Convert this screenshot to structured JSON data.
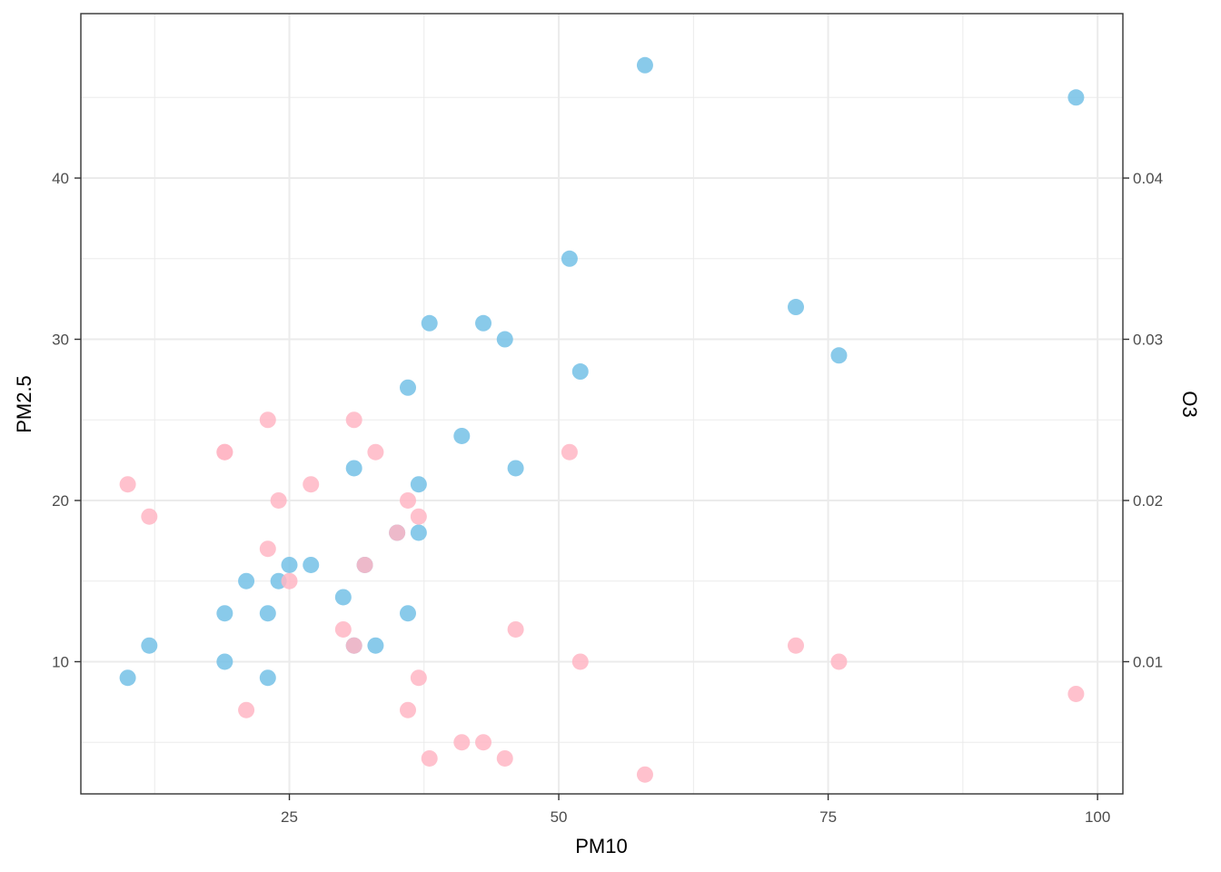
{
  "chart_data": {
    "type": "scatter",
    "xlabel": "PM10",
    "ylabel": "PM2.5",
    "y2label": "O3",
    "xlim": [
      5.65,
      102.35
    ],
    "ylim": [
      1.8,
      50.2
    ],
    "y2lim": [
      0.0018,
      0.0502
    ],
    "x_major_ticks": [
      25,
      50,
      75,
      100
    ],
    "x_minor_ticks": [
      12.5,
      37.5,
      62.5,
      87.5
    ],
    "y_major_ticks": [
      10,
      20,
      30,
      40
    ],
    "y_minor_ticks": [
      5,
      15,
      25,
      35,
      45
    ],
    "y2_major_ticks": [
      0.01,
      0.02,
      0.03,
      0.04
    ],
    "y2_tick_labels": [
      "0.01",
      "0.02",
      "0.03",
      "0.04"
    ],
    "grid": true,
    "series": [
      {
        "axis": "y",
        "color": "#74c1e6",
        "points": [
          [
            10,
            9
          ],
          [
            12,
            11
          ],
          [
            19,
            13
          ],
          [
            19,
            10
          ],
          [
            21,
            15
          ],
          [
            23,
            13
          ],
          [
            23,
            9
          ],
          [
            24,
            15
          ],
          [
            25,
            16
          ],
          [
            27,
            16
          ],
          [
            30,
            14
          ],
          [
            31,
            22
          ],
          [
            31,
            11
          ],
          [
            32,
            16
          ],
          [
            33,
            11
          ],
          [
            35,
            18
          ],
          [
            36,
            27
          ],
          [
            36,
            13
          ],
          [
            37,
            21
          ],
          [
            37,
            18
          ],
          [
            38,
            31
          ],
          [
            41,
            24
          ],
          [
            43,
            31
          ],
          [
            45,
            30
          ],
          [
            46,
            22
          ],
          [
            51,
            35
          ],
          [
            52,
            28
          ],
          [
            58,
            47
          ],
          [
            72,
            32
          ],
          [
            76,
            29
          ],
          [
            98,
            45
          ]
        ]
      },
      {
        "axis": "y2",
        "color": "#ffb6c4",
        "points": [
          [
            10,
            0.021
          ],
          [
            12,
            0.019
          ],
          [
            19,
            0.023
          ],
          [
            19,
            0.023
          ],
          [
            21,
            0.007
          ],
          [
            23,
            0.025
          ],
          [
            23,
            0.017
          ],
          [
            24,
            0.02
          ],
          [
            25,
            0.015
          ],
          [
            27,
            0.021
          ],
          [
            30,
            0.012
          ],
          [
            31,
            0.025
          ],
          [
            31,
            0.011
          ],
          [
            32,
            0.016
          ],
          [
            33,
            0.023
          ],
          [
            35,
            0.018
          ],
          [
            36,
            0.02
          ],
          [
            36,
            0.007
          ],
          [
            37,
            0.019
          ],
          [
            37,
            0.009
          ],
          [
            38,
            0.004
          ],
          [
            41,
            0.005
          ],
          [
            43,
            0.005
          ],
          [
            45,
            0.004
          ],
          [
            46,
            0.012
          ],
          [
            51,
            0.023
          ],
          [
            52,
            0.01
          ],
          [
            58,
            0.003
          ],
          [
            72,
            0.011
          ],
          [
            76,
            0.01
          ],
          [
            98,
            0.008
          ]
        ]
      }
    ]
  }
}
